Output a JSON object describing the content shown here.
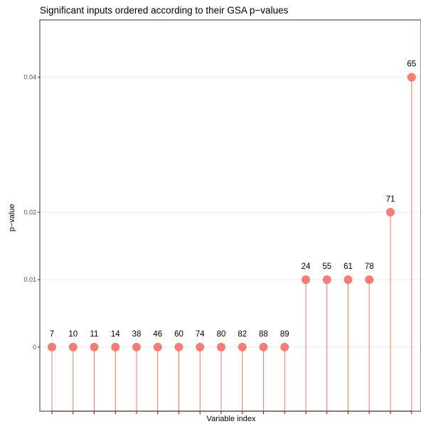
{
  "chart_data": {
    "type": "lollipop",
    "title": "Significant inputs ordered according to their GSA p−values",
    "xlabel": "Variable index",
    "ylabel": "p−value",
    "y_ticks": [
      0,
      0.01,
      0.02,
      0.04
    ],
    "y_tick_labels": [
      "0",
      "0.01",
      "0.02",
      "0.04"
    ],
    "ylim": [
      -0.0095,
      0.0485
    ],
    "grid": "horizontal major",
    "color": "#f8766d",
    "stem_color": "#f8766d",
    "baseline_value": -0.0095,
    "categories": [
      "7",
      "10",
      "11",
      "14",
      "38",
      "46",
      "60",
      "74",
      "80",
      "82",
      "88",
      "89",
      "24",
      "55",
      "61",
      "78",
      "71",
      "65"
    ],
    "values": [
      0,
      0,
      0,
      0,
      0,
      0,
      0,
      0,
      0,
      0,
      0,
      0,
      0.01,
      0.01,
      0.01,
      0.01,
      0.02,
      0.04
    ]
  }
}
